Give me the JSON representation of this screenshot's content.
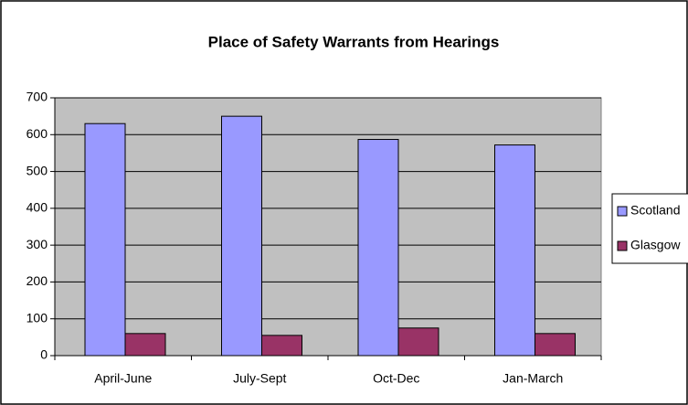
{
  "chart_data": {
    "type": "bar",
    "title": "Place of Safety Warrants from Hearings",
    "categories": [
      "April-June",
      "July-Sept",
      "Oct-Dec",
      "Jan-March"
    ],
    "series": [
      {
        "name": "Scotland",
        "color": "#9999ff",
        "values": [
          630,
          650,
          587,
          572
        ]
      },
      {
        "name": "Glasgow",
        "color": "#993366",
        "values": [
          60,
          55,
          75,
          60
        ]
      }
    ],
    "ylim": [
      0,
      700
    ],
    "yticks": [
      0,
      100,
      200,
      300,
      400,
      500,
      600,
      700
    ],
    "grid": true,
    "legend": "right"
  }
}
